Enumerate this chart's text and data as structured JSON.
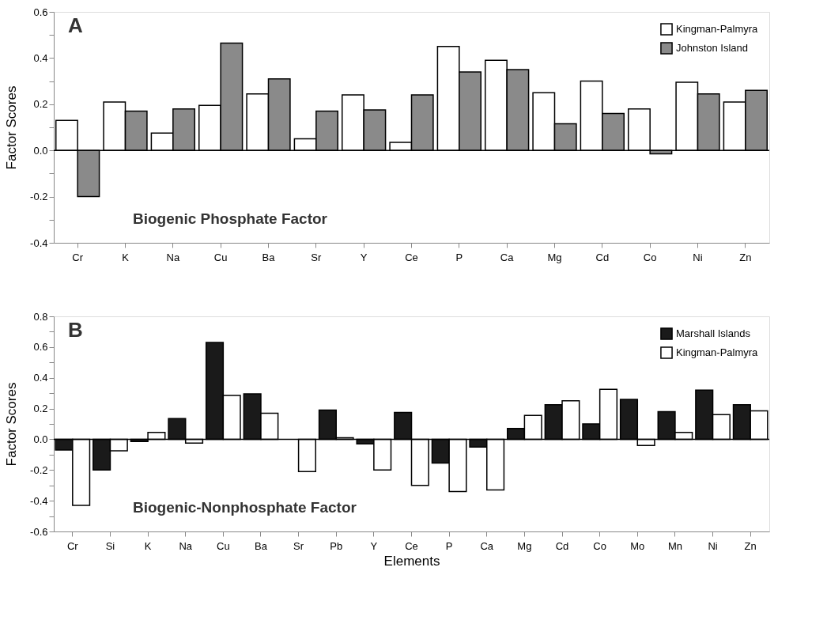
{
  "chart_data": [
    {
      "type": "bar",
      "ylabel": "Factor Scores",
      "annotations": [
        "A",
        "Biogenic Phosphate Factor"
      ],
      "categories": [
        "Cr",
        "K",
        "Na",
        "Cu",
        "Ba",
        "Sr",
        "Y",
        "Ce",
        "P",
        "Ca",
        "Mg",
        "Cd",
        "Co",
        "Ni",
        "Zn"
      ],
      "series": [
        {
          "name": "Kingman-Palmyra",
          "color": "#ffffff",
          "values": [
            0.13,
            0.21,
            0.075,
            0.195,
            0.245,
            0.05,
            0.24,
            0.035,
            0.45,
            0.39,
            0.25,
            0.3,
            0.18,
            0.295,
            0.21
          ]
        },
        {
          "name": "Johnston Island",
          "color": "#8a8a8a",
          "values": [
            -0.2,
            0.17,
            0.18,
            0.465,
            0.31,
            0.17,
            0.175,
            0.24,
            0.34,
            0.35,
            0.115,
            0.16,
            -0.015,
            0.245,
            0.26
          ]
        }
      ],
      "ylim": [
        -0.4,
        0.6
      ],
      "yticks": [
        -0.4,
        {
          "value": -0.3,
          "label": null
        },
        -0.2,
        {
          "value": -0.1,
          "label": null
        },
        {
          "value": 0,
          "label": "0.0"
        },
        {
          "value": 0.1,
          "label": null
        },
        0.2,
        {
          "value": 0.3,
          "label": null
        },
        0.4,
        {
          "value": 0.5,
          "label": null
        },
        0.6
      ],
      "ref_lines": [
        {
          "axis": "y",
          "value": 0,
          "color": "#000000"
        }
      ],
      "grid": false,
      "legend": "top right"
    },
    {
      "type": "bar",
      "ylabel": "Factor Scores",
      "xlabel": "Elements",
      "annotations": [
        "B",
        "Biogenic-Nonphosphate Factor"
      ],
      "categories": [
        "Cr",
        "Si",
        "K",
        "Na",
        "Cu",
        "Ba",
        "Sr",
        "Pb",
        "Y",
        "Ce",
        "P",
        "Ca",
        "Mg",
        "Cd",
        "Co",
        "Mo",
        "Mn",
        "Ni",
        "Zn"
      ],
      "series": [
        {
          "name": "Marshall Islands",
          "color": "#1a1a1a",
          "values": [
            -0.07,
            -0.2,
            -0.015,
            0.135,
            0.63,
            0.295,
            null,
            0.19,
            -0.03,
            0.175,
            -0.155,
            -0.05,
            0.07,
            0.225,
            0.1,
            0.26,
            0.18,
            0.32,
            0.225
          ]
        },
        {
          "name": "Kingman-Palmyra",
          "color": "#ffffff",
          "values": [
            -0.43,
            -0.075,
            0.045,
            -0.025,
            0.285,
            0.17,
            -0.21,
            0.01,
            -0.2,
            -0.3,
            -0.34,
            -0.33,
            0.155,
            0.25,
            0.325,
            -0.04,
            0.045,
            0.16,
            0.185
          ]
        }
      ],
      "ylim": [
        -0.6,
        0.8
      ],
      "yticks": [
        -0.6,
        {
          "value": -0.5,
          "label": null
        },
        -0.4,
        {
          "value": -0.3,
          "label": null
        },
        -0.2,
        {
          "value": -0.1,
          "label": null
        },
        {
          "value": 0,
          "label": "0.0"
        },
        {
          "value": 0.1,
          "label": null
        },
        0.2,
        {
          "value": 0.3,
          "label": null
        },
        0.4,
        {
          "value": 0.5,
          "label": null
        },
        0.6,
        {
          "value": 0.7,
          "label": null
        },
        0.8
      ],
      "ref_lines": [
        {
          "axis": "y",
          "value": 0,
          "color": "#000000"
        }
      ],
      "grid": false,
      "legend": "top right"
    }
  ]
}
